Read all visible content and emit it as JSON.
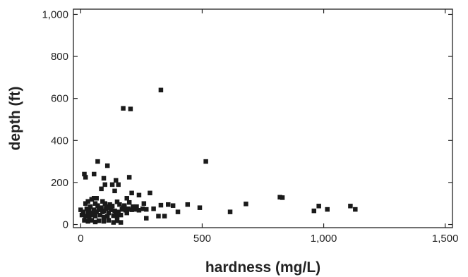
{
  "chart_data": {
    "type": "scatter",
    "title": "",
    "xlabel": "hardness (mg/L)",
    "ylabel": "depth (ft)",
    "xlim": [
      -30,
      1530
    ],
    "ylim": [
      -15,
      1025
    ],
    "xticks": [
      0,
      500,
      1000,
      1500
    ],
    "yticks": [
      0,
      200,
      400,
      600,
      800,
      1000
    ],
    "xtick_labels": [
      "0",
      "500",
      "1,000",
      "1,500"
    ],
    "ytick_labels": [
      "0",
      "200",
      "400",
      "600",
      "800",
      "1,000"
    ],
    "grid": false,
    "legend": "none",
    "marker": "square",
    "marker_color": "#1a1a1a",
    "series": [
      {
        "points": [
          [
            330,
            640
          ],
          [
            175,
            553
          ],
          [
            205,
            550
          ],
          [
            515,
            300
          ],
          [
            70,
            300
          ],
          [
            15,
            240
          ],
          [
            20,
            225
          ],
          [
            55,
            240
          ],
          [
            95,
            220
          ],
          [
            110,
            280
          ],
          [
            145,
            210
          ],
          [
            155,
            190
          ],
          [
            200,
            225
          ],
          [
            100,
            190
          ],
          [
            130,
            190
          ],
          [
            85,
            170
          ],
          [
            140,
            160
          ],
          [
            210,
            150
          ],
          [
            240,
            140
          ],
          [
            190,
            125
          ],
          [
            55,
            125
          ],
          [
            65,
            125
          ],
          [
            45,
            120
          ],
          [
            820,
            130
          ],
          [
            830,
            128
          ],
          [
            30,
            110
          ],
          [
            90,
            110
          ],
          [
            150,
            108
          ],
          [
            200,
            105
          ],
          [
            260,
            100
          ],
          [
            440,
            95
          ],
          [
            680,
            98
          ],
          [
            380,
            90
          ],
          [
            360,
            95
          ],
          [
            330,
            92
          ],
          [
            285,
            150
          ],
          [
            20,
            100
          ],
          [
            60,
            100
          ],
          [
            100,
            100
          ],
          [
            120,
            95
          ],
          [
            160,
            95
          ],
          [
            40,
            85
          ],
          [
            70,
            90
          ],
          [
            130,
            88
          ],
          [
            180,
            90
          ],
          [
            230,
            85
          ],
          [
            980,
            88
          ],
          [
            1110,
            88
          ],
          [
            1130,
            72
          ],
          [
            490,
            80
          ],
          [
            1015,
            72
          ],
          [
            960,
            65
          ],
          [
            615,
            60
          ],
          [
            400,
            60
          ],
          [
            300,
            75
          ],
          [
            0,
            70
          ],
          [
            10,
            60
          ],
          [
            25,
            75
          ],
          [
            35,
            65
          ],
          [
            50,
            55
          ],
          [
            75,
            70
          ],
          [
            90,
            60
          ],
          [
            105,
            75
          ],
          [
            115,
            55
          ],
          [
            125,
            70
          ],
          [
            140,
            65
          ],
          [
            155,
            60
          ],
          [
            170,
            72
          ],
          [
            185,
            68
          ],
          [
            195,
            75
          ],
          [
            210,
            70
          ],
          [
            225,
            72
          ],
          [
            240,
            68
          ],
          [
            255,
            75
          ],
          [
            270,
            72
          ],
          [
            5,
            45
          ],
          [
            20,
            40
          ],
          [
            35,
            35
          ],
          [
            45,
            45
          ],
          [
            60,
            40
          ],
          [
            80,
            45
          ],
          [
            95,
            35
          ],
          [
            110,
            40
          ],
          [
            135,
            42
          ],
          [
            150,
            38
          ],
          [
            165,
            45
          ],
          [
            320,
            40
          ],
          [
            345,
            40
          ],
          [
            270,
            30
          ],
          [
            15,
            20
          ],
          [
            30,
            15
          ],
          [
            45,
            20
          ],
          [
            60,
            12
          ],
          [
            75,
            18
          ],
          [
            95,
            15
          ],
          [
            115,
            20
          ],
          [
            135,
            10
          ],
          [
            150,
            18
          ],
          [
            165,
            10
          ],
          [
            30,
            55
          ],
          [
            55,
            70
          ],
          [
            85,
            80
          ],
          [
            65,
            60
          ],
          [
            105,
            85
          ],
          [
            145,
            50
          ],
          [
            175,
            80
          ],
          [
            190,
            55
          ],
          [
            215,
            85
          ],
          [
            120,
            80
          ],
          [
            95,
            65
          ]
        ]
      }
    ]
  }
}
